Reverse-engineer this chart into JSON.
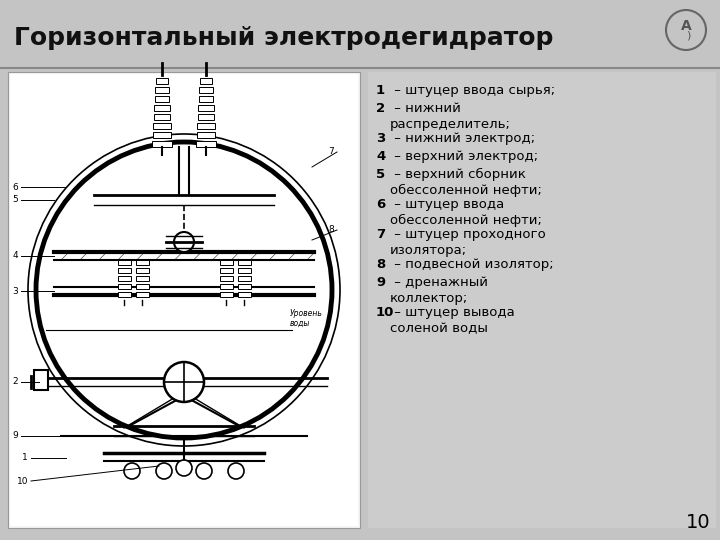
{
  "title": "Горизонтальный электродегидратор",
  "bg_color": "#c4c4c4",
  "title_color": "#111111",
  "title_fontsize": 18,
  "legend_fontsize": 9.5,
  "items": [
    {
      "num": "1",
      "text": " – штуцер ввода сырья;"
    },
    {
      "num": "2",
      "text": " – нижний\nраспределитель;"
    },
    {
      "num": "3",
      "text": " – нижний электрод;"
    },
    {
      "num": "4",
      "text": " – верхний электрод;"
    },
    {
      "num": "5",
      "text": " – верхний сборник\nобессоленной нефти;"
    },
    {
      "num": "6",
      "text": " – штуцер ввода\nобессоленной нефти;"
    },
    {
      "num": "7",
      "text": " – штуцер проходного\nизолятора;"
    },
    {
      "num": "8",
      "text": " – подвесной изолятор;"
    },
    {
      "num": "9",
      "text": " – дренажный\nколлектор;"
    },
    {
      "num": "10",
      "text": " – штуцер вывода\nсоленой воды"
    }
  ],
  "page_num": "10"
}
